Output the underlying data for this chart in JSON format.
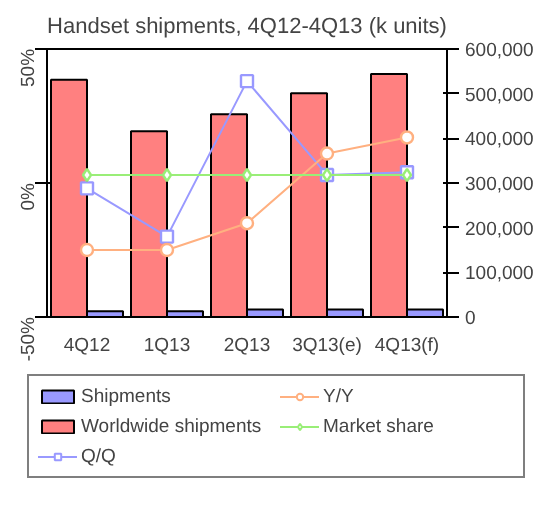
{
  "chart_data": {
    "type": "bar",
    "title": "Handset shipments, 4Q12-4Q13 (k units)",
    "categories": [
      "4Q12",
      "1Q13",
      "2Q13",
      "3Q13(e)",
      "4Q13(f)"
    ],
    "series": [
      {
        "name": "Shipments",
        "color": "#9999ff",
        "axis": "y2",
        "values": [
          13000,
          13000,
          17000,
          17000,
          17000
        ]
      },
      {
        "name": "Worldwide shipments",
        "color": "#ff8080",
        "axis": "y2",
        "values": [
          531000,
          416000,
          454000,
          501000,
          544000
        ]
      },
      {
        "name": "Q/Q",
        "type": "line",
        "color": "#9999ff",
        "marker": "square",
        "values": [
          -2,
          -20,
          38,
          3,
          4
        ]
      },
      {
        "name": "Y/Y",
        "type": "line",
        "color": "#ffb080",
        "marker": "circle",
        "values": [
          -25,
          -25,
          -15,
          11,
          17
        ]
      },
      {
        "name": "Market share",
        "type": "line",
        "color": "#99ee77",
        "marker": "diamond",
        "values": [
          3,
          3,
          3,
          3,
          3
        ]
      }
    ],
    "ylim": [
      -50,
      50
    ],
    "yticks": [
      {
        "value": -50,
        "label": "-50%"
      },
      {
        "value": 0,
        "label": "0%"
      },
      {
        "value": 50,
        "label": "50%"
      }
    ],
    "y2lim": [
      0,
      600000
    ],
    "y2ticks": [
      0,
      {
        "value": 100000,
        "label": "100,000"
      },
      {
        "value": 200000,
        "label": "200,000"
      },
      {
        "value": 300000,
        "label": "300,000"
      },
      {
        "value": 400000,
        "label": "400,000"
      },
      {
        "value": 500000,
        "label": "500,000"
      },
      {
        "value": 600000,
        "label": "600,000"
      }
    ],
    "grid": false,
    "legend": "bottom"
  }
}
